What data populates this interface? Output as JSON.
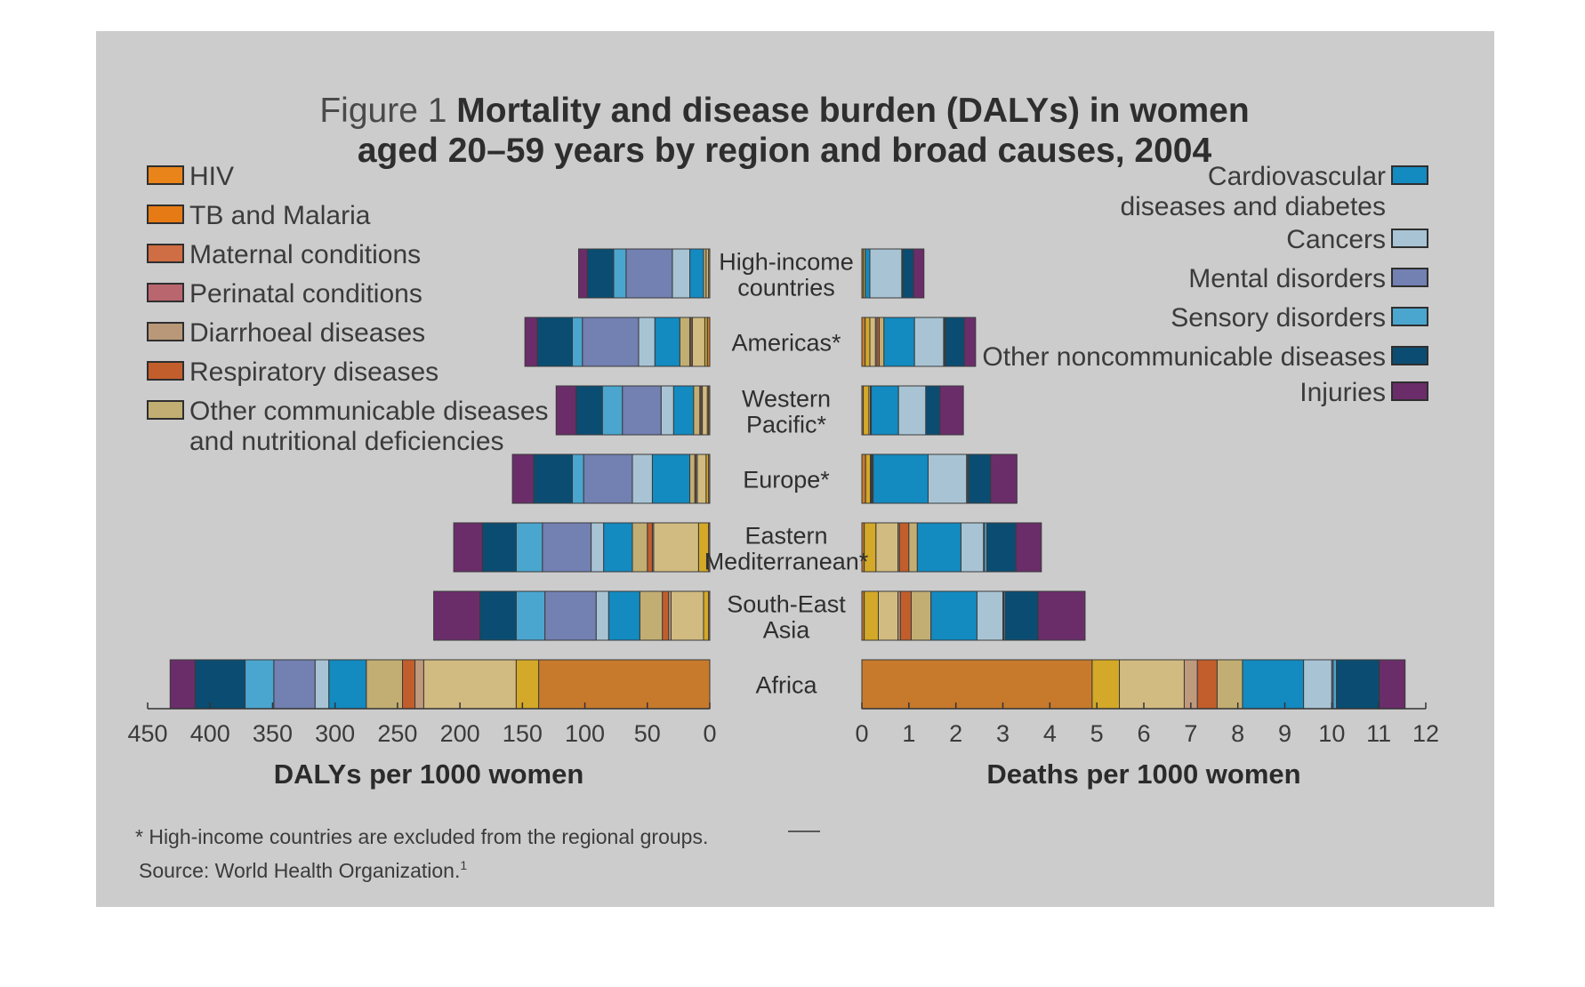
{
  "title": {
    "prefix": "Figure 1",
    "line1": "Mortality and disease burden (DALYs) in women",
    "line2": "aged 20–59 years by region and broad causes, 2004"
  },
  "legend_left": [
    {
      "label": "HIV",
      "color": "#e8841a"
    },
    {
      "label": "TB and Malaria",
      "color": "#e67a14"
    },
    {
      "label": "Maternal conditions",
      "color": "#cf6d44"
    },
    {
      "label": "Perinatal conditions",
      "color": "#b9666f"
    },
    {
      "label": "Diarrhoeal diseases",
      "color": "#b89878"
    },
    {
      "label": "Respiratory diseases",
      "color": "#c25e2c"
    },
    {
      "label": "Other communicable diseases",
      "label2": "and nutritional deficiencies",
      "color": "#c2ae72"
    }
  ],
  "legend_right": [
    {
      "label": "Cardiovascular",
      "label2": "diseases and diabetes",
      "color": "#138ac0"
    },
    {
      "label": "Cancers",
      "color": "#a8c4d4"
    },
    {
      "label": "Mental disorders",
      "color": "#7280b2"
    },
    {
      "label": "Sensory disorders",
      "color": "#4aa6cf"
    },
    {
      "label": "Other noncommunicable diseases",
      "color": "#0b4d72"
    },
    {
      "label": "Injuries",
      "color": "#6a2d6a"
    }
  ],
  "chart_data": [
    {
      "type": "bar",
      "orientation": "horizontal-stacked",
      "xlabel": "DALYs per 1000 women",
      "xlim": [
        450,
        0
      ],
      "xticks": [
        "450",
        "400",
        "350",
        "300",
        "250",
        "200",
        "150",
        "100",
        "50",
        "0"
      ],
      "categories": [
        "High-income countries",
        "Americas*",
        "Western Pacific*",
        "Europe*",
        "Eastern Mediterranean*",
        "South-East Asia",
        "Africa"
      ],
      "series": [
        {
          "color": "#c77a2c",
          "values": [
            0,
            2,
            1,
            1,
            1,
            1,
            137
          ]
        },
        {
          "color": "#d4a828",
          "values": [
            1,
            2,
            1,
            2,
            8,
            4,
            18
          ]
        },
        {
          "color": "#d2bb80",
          "values": [
            2,
            10,
            4,
            7,
            36,
            26,
            74
          ]
        },
        {
          "color": "#c09a7c",
          "values": [
            0,
            1,
            1,
            1,
            1,
            2,
            7
          ]
        },
        {
          "color": "#c25e2c",
          "values": [
            0,
            1,
            1,
            1,
            4,
            5,
            10
          ]
        },
        {
          "color": "#c2ae72",
          "values": [
            2,
            8,
            5,
            4,
            12,
            18,
            29
          ]
        },
        {
          "color": "#138ac0",
          "values": [
            11,
            20,
            16,
            30,
            23,
            25,
            30
          ]
        },
        {
          "color": "#a8c4d4",
          "values": [
            14,
            13,
            10,
            16,
            10,
            10,
            11
          ]
        },
        {
          "color": "#7280b2",
          "values": [
            37,
            45,
            31,
            39,
            39,
            41,
            33
          ]
        },
        {
          "color": "#4aa6cf",
          "values": [
            10,
            8,
            16,
            9,
            21,
            23,
            23
          ]
        },
        {
          "color": "#0b4d72",
          "values": [
            21,
            28,
            21,
            31,
            27,
            29,
            40
          ]
        },
        {
          "color": "#6a2d6a",
          "values": [
            7,
            10,
            16,
            17,
            23,
            37,
            20
          ]
        }
      ]
    },
    {
      "type": "bar",
      "orientation": "horizontal-stacked",
      "xlabel": "Deaths per 1000 women",
      "xlim": [
        0,
        12
      ],
      "xticks": [
        "0",
        "1",
        "2",
        "3",
        "4",
        "5",
        "6",
        "7",
        "8",
        "9",
        "10",
        "11",
        "12"
      ],
      "categories": [
        "High-income countries",
        "Americas*",
        "Western Pacific*",
        "Europe*",
        "Eastern Mediterranean*",
        "South-East Asia",
        "Africa"
      ],
      "series": [
        {
          "color": "#c77a2c",
          "values": [
            0.03,
            0.07,
            0.03,
            0.08,
            0.05,
            0.05,
            4.9
          ]
        },
        {
          "color": "#d4a828",
          "values": [
            0.04,
            0.1,
            0.12,
            0.1,
            0.25,
            0.3,
            0.58
          ]
        },
        {
          "color": "#d2bb80",
          "values": [
            0.0,
            0.12,
            0.03,
            0.02,
            0.47,
            0.42,
            1.38
          ]
        },
        {
          "color": "#c09a7c",
          "values": [
            0.0,
            0.03,
            0.0,
            0.0,
            0.03,
            0.05,
            0.28
          ]
        },
        {
          "color": "#c25e2c",
          "values": [
            0.0,
            0.05,
            0.0,
            0.02,
            0.2,
            0.23,
            0.42
          ]
        },
        {
          "color": "#c2ae72",
          "values": [
            0.0,
            0.1,
            0.02,
            0.02,
            0.18,
            0.42,
            0.54
          ]
        },
        {
          "color": "#138ac0",
          "values": [
            0.1,
            0.65,
            0.58,
            1.17,
            0.93,
            0.98,
            1.3
          ]
        },
        {
          "color": "#a8c4d4",
          "values": [
            0.68,
            0.62,
            0.58,
            0.82,
            0.48,
            0.55,
            0.6
          ]
        },
        {
          "color": "#7280b2",
          "values": [
            0.01,
            0.02,
            0.0,
            0.02,
            0.02,
            0.02,
            0.03
          ]
        },
        {
          "color": "#4aa6cf",
          "values": [
            0.01,
            0.02,
            0.0,
            0.02,
            0.05,
            0.03,
            0.07
          ]
        },
        {
          "color": "#0b4d72",
          "values": [
            0.23,
            0.4,
            0.3,
            0.47,
            0.62,
            0.7,
            0.91
          ]
        },
        {
          "color": "#6a2d6a",
          "values": [
            0.22,
            0.24,
            0.5,
            0.56,
            0.54,
            1.0,
            0.55
          ]
        }
      ]
    }
  ],
  "regions": [
    {
      "line1": "High-income",
      "line2": "countries"
    },
    {
      "line1": "Americas*",
      "line2": ""
    },
    {
      "line1": "Western",
      "line2": "Pacific*"
    },
    {
      "line1": "Europe*",
      "line2": ""
    },
    {
      "line1": "Eastern",
      "line2": "Mediterranean*"
    },
    {
      "line1": "South-East",
      "line2": "Asia"
    },
    {
      "line1": "Africa",
      "line2": ""
    }
  ],
  "footnote": "* High-income countries are excluded from the regional groups.",
  "source": "Source: World Health Organization.",
  "source_sup": "1",
  "colors": {
    "panel_background": "#cccccc",
    "page_background": "#ffffff"
  }
}
